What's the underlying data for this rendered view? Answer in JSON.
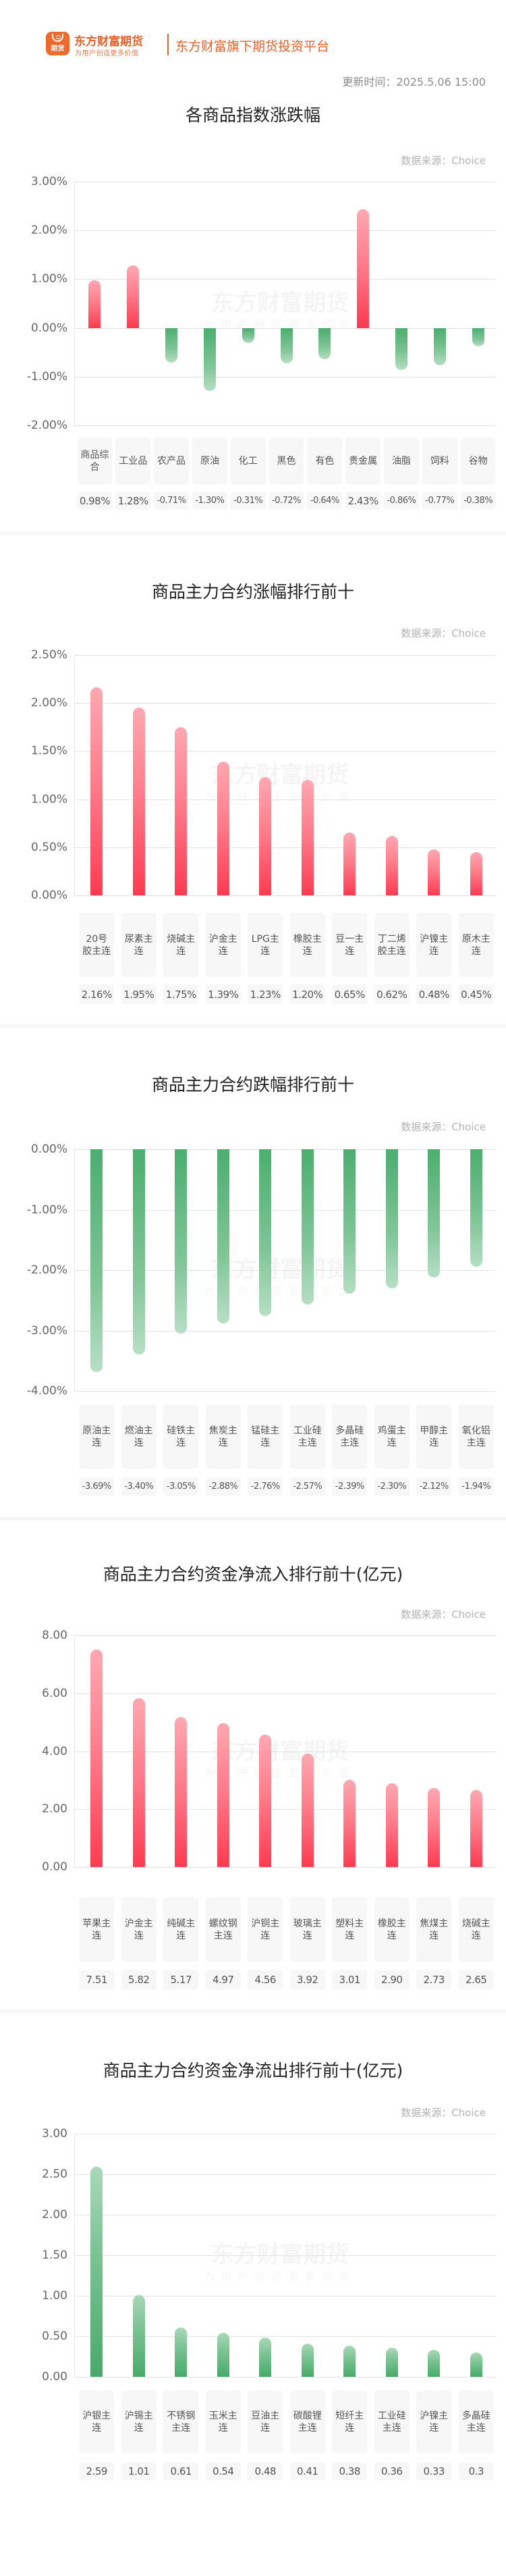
{
  "header": {
    "logo_tag": "期货",
    "brand_name": "东方财富期货",
    "brand_slogan": "为用户创造更多价值",
    "platform_text": "东方财富旗下期货投资平台",
    "update_time": "更新时间：2025.5.06 15:00",
    "brand_color": "#e8602a"
  },
  "watermark": {
    "line1": "东方财富期货",
    "line2": "为用户创造更多价值"
  },
  "colors": {
    "up": "#ff3a50",
    "down": "#4bae6f",
    "grid": "#e3e3e3",
    "cell_bg": "#f7f7f7"
  },
  "sections": [
    {
      "title": "各商品指数涨跌幅",
      "source": "数据来源：Choice",
      "yticks": [
        "3.00%",
        "2.00%",
        "1.00%",
        "0.00%",
        "-1.00%",
        "-2.00%"
      ],
      "labels": [
        "商品综合",
        "工业品",
        "农产品",
        "原油",
        "化工",
        "黑色",
        "有色",
        "贵金属",
        "油脂",
        "饲料",
        "谷物"
      ],
      "values": [
        "0.98%",
        "1.28%",
        "-0.71%",
        "-1.30%",
        "-0.31%",
        "-0.72%",
        "-0.64%",
        "2.43%",
        "-0.86%",
        "-0.77%",
        "-0.38%"
      ]
    },
    {
      "title": "商品主力合约涨幅排行前十",
      "source": "数据来源：Choice",
      "yticks": [
        "2.50%",
        "2.00%",
        "1.50%",
        "1.00%",
        "0.50%",
        "0.00%"
      ],
      "labels": [
        "20号胶主连",
        "尿素主连",
        "烧碱主连",
        "沪金主连",
        "LPG主连",
        "橡胶主连",
        "豆一主连",
        "丁二烯胶主连",
        "沪镍主连",
        "原木主连"
      ],
      "values": [
        "2.16%",
        "1.95%",
        "1.75%",
        "1.39%",
        "1.23%",
        "1.20%",
        "0.65%",
        "0.62%",
        "0.48%",
        "0.45%"
      ]
    },
    {
      "title": "商品主力合约跌幅排行前十",
      "source": "数据来源：Choice",
      "yticks": [
        "0.00%",
        "-1.00%",
        "-2.00%",
        "-3.00%",
        "-4.00%"
      ],
      "labels": [
        "原油主连",
        "燃油主连",
        "硅铁主连",
        "焦炭主连",
        "锰硅主连",
        "工业硅主连",
        "多晶硅主连",
        "鸡蛋主连",
        "甲醇主连",
        "氧化铝主连"
      ],
      "values": [
        "-3.69%",
        "-3.40%",
        "-3.05%",
        "-2.88%",
        "-2.76%",
        "-2.57%",
        "-2.39%",
        "-2.30%",
        "-2.12%",
        "-1.94%"
      ]
    },
    {
      "title": "商品主力合约资金净流入排行前十(亿元)",
      "source": "数据来源：Choice",
      "yticks": [
        "8.00",
        "6.00",
        "4.00",
        "2.00",
        "0.00"
      ],
      "labels": [
        "苹果主连",
        "沪金主连",
        "纯碱主连",
        "螺纹钢主连",
        "沪铜主连",
        "玻璃主连",
        "塑料主连",
        "橡胶主连",
        "焦煤主连",
        "烧碱主连"
      ],
      "values": [
        "7.51",
        "5.82",
        "5.17",
        "4.97",
        "4.56",
        "3.92",
        "3.01",
        "2.90",
        "2.73",
        "2.65"
      ]
    },
    {
      "title": "商品主力合约资金净流出排行前十(亿元)",
      "source": "数据来源：Choice",
      "yticks": [
        "3.00",
        "2.50",
        "2.00",
        "1.50",
        "1.00",
        "0.50",
        "0.00"
      ],
      "labels": [
        "沪银主连",
        "沪锡主连",
        "不锈钢主连",
        "玉米主连",
        "豆油主连",
        "碳酸锂主连",
        "短纤主连",
        "工业硅主连",
        "沪镍主连",
        "多晶硅主连"
      ],
      "values": [
        "2.59",
        "1.01",
        "0.61",
        "0.54",
        "0.48",
        "0.41",
        "0.38",
        "0.36",
        "0.33",
        "0.3"
      ]
    }
  ],
  "chart_data": [
    {
      "type": "bar",
      "title": "各商品指数涨跌幅",
      "categories": [
        "商品综合",
        "工业品",
        "农产品",
        "原油",
        "化工",
        "黑色",
        "有色",
        "贵金属",
        "油脂",
        "饲料",
        "谷物"
      ],
      "values": [
        0.98,
        1.28,
        -0.71,
        -1.3,
        -0.31,
        -0.72,
        -0.64,
        2.43,
        -0.86,
        -0.77,
        -0.38
      ],
      "xlabel": "",
      "ylabel": "%",
      "ylim": [
        -2,
        3
      ],
      "grid": true,
      "legend": "none",
      "annotation": "数据来源：Choice"
    },
    {
      "type": "bar",
      "title": "商品主力合约涨幅排行前十",
      "categories": [
        "20号胶主连",
        "尿素主连",
        "烧碱主连",
        "沪金主连",
        "LPG主连",
        "橡胶主连",
        "豆一主连",
        "丁二烯胶主连",
        "沪镍主连",
        "原木主连"
      ],
      "values": [
        2.16,
        1.95,
        1.75,
        1.39,
        1.23,
        1.2,
        0.65,
        0.62,
        0.48,
        0.45
      ],
      "xlabel": "",
      "ylabel": "%",
      "ylim": [
        0,
        2.5
      ],
      "grid": true,
      "legend": "none",
      "annotation": "数据来源：Choice"
    },
    {
      "type": "bar",
      "title": "商品主力合约跌幅排行前十",
      "categories": [
        "原油主连",
        "燃油主连",
        "硅铁主连",
        "焦炭主连",
        "锰硅主连",
        "工业硅主连",
        "多晶硅主连",
        "鸡蛋主连",
        "甲醇主连",
        "氧化铝主连"
      ],
      "values": [
        -3.69,
        -3.4,
        -3.05,
        -2.88,
        -2.76,
        -2.57,
        -2.39,
        -2.3,
        -2.12,
        -1.94
      ],
      "xlabel": "",
      "ylabel": "%",
      "ylim": [
        -4,
        0
      ],
      "grid": true,
      "legend": "none",
      "annotation": "数据来源：Choice"
    },
    {
      "type": "bar",
      "title": "商品主力合约资金净流入排行前十(亿元)",
      "categories": [
        "苹果主连",
        "沪金主连",
        "纯碱主连",
        "螺纹钢主连",
        "沪铜主连",
        "玻璃主连",
        "塑料主连",
        "橡胶主连",
        "焦煤主连",
        "烧碱主连"
      ],
      "values": [
        7.51,
        5.82,
        5.17,
        4.97,
        4.56,
        3.92,
        3.01,
        2.9,
        2.73,
        2.65
      ],
      "xlabel": "",
      "ylabel": "亿元",
      "ylim": [
        0,
        8
      ],
      "grid": true,
      "legend": "none",
      "annotation": "数据来源：Choice"
    },
    {
      "type": "bar",
      "title": "商品主力合约资金净流出排行前十(亿元)",
      "categories": [
        "沪银主连",
        "沪锡主连",
        "不锈钢主连",
        "玉米主连",
        "豆油主连",
        "碳酸锂主连",
        "短纤主连",
        "工业硅主连",
        "沪镍主连",
        "多晶硅主连"
      ],
      "values": [
        2.59,
        1.01,
        0.61,
        0.54,
        0.48,
        0.41,
        0.38,
        0.36,
        0.33,
        0.3
      ],
      "xlabel": "",
      "ylabel": "亿元",
      "ylim": [
        0,
        3
      ],
      "grid": true,
      "legend": "none",
      "annotation": "数据来源：Choice"
    }
  ]
}
